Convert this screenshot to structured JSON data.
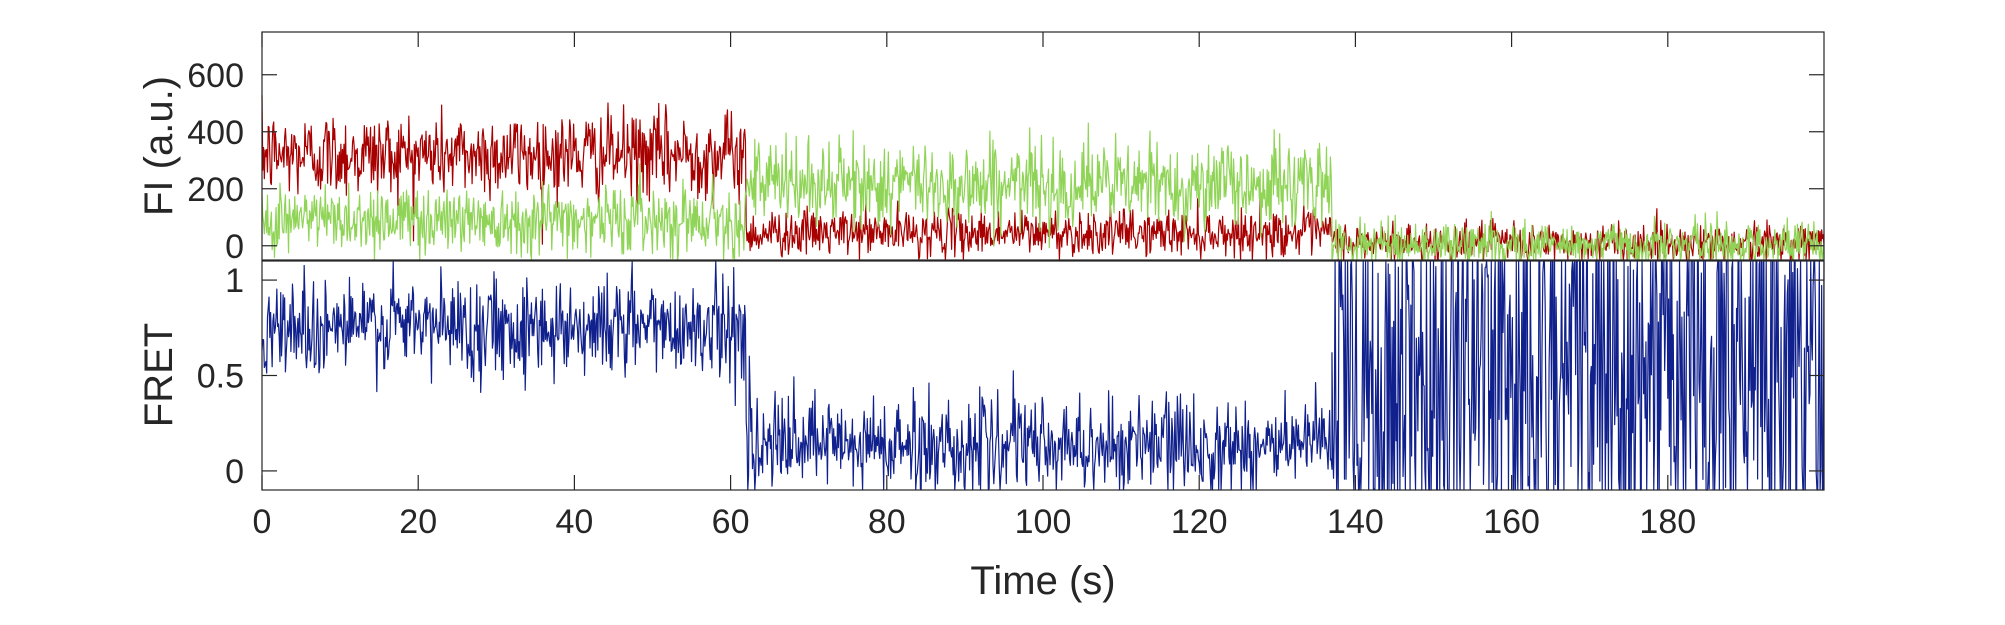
{
  "chart_data": [
    {
      "type": "line",
      "panel": "top",
      "ylabel": "FI (a.u.)",
      "xlabel": "",
      "xlim": [
        0,
        200
      ],
      "ylim": [
        -50,
        750
      ],
      "yticks": [
        0,
        200,
        400,
        600
      ],
      "series": [
        {
          "color": "#a80000",
          "segments": [
            {
              "x": [
                0,
                62
              ],
              "mean": 320,
              "noise": 75
            },
            {
              "x": [
                62,
                137
              ],
              "mean": 45,
              "noise": 40
            },
            {
              "x": [
                137,
                200
              ],
              "mean": 10,
              "noise": 35
            }
          ]
        },
        {
          "color": "#8fd456",
          "segments": [
            {
              "x": [
                0,
                62
              ],
              "mean": 95,
              "noise": 60
            },
            {
              "x": [
                62,
                137
              ],
              "mean": 215,
              "noise": 75
            },
            {
              "x": [
                137,
                200
              ],
              "mean": 5,
              "noise": 40
            }
          ]
        }
      ]
    },
    {
      "type": "line",
      "panel": "bottom",
      "ylabel": "FRET",
      "xlabel": "Time (s)",
      "xlim": [
        0,
        200
      ],
      "ylim": [
        -0.1,
        1.1
      ],
      "yticks": [
        0,
        0.5,
        1
      ],
      "xticks": [
        0,
        20,
        40,
        60,
        80,
        100,
        120,
        140,
        160,
        180
      ],
      "series": [
        {
          "color": "#10208c",
          "segments": [
            {
              "x": [
                0,
                62
              ],
              "mean": 0.76,
              "noise": 0.13
            },
            {
              "x": [
                62,
                137
              ],
              "mean": 0.13,
              "noise": 0.13
            },
            {
              "x": [
                137,
                200
              ],
              "mean": 0.5,
              "noise": 0.75
            }
          ]
        }
      ]
    }
  ]
}
